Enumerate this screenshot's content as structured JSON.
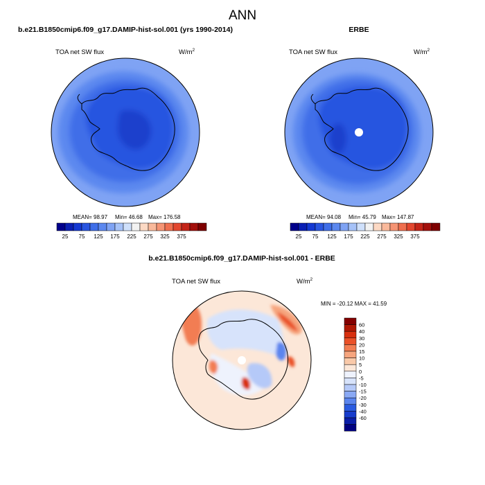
{
  "page": {
    "title": "ANN",
    "panel_a_title": "b.e21.B1850cmip6.f09_g17.DAMIP-hist-sol.001 (yrs 1990-2014)",
    "panel_b_title": "ERBE",
    "panel_c_title": "b.e21.B1850cmip6.f09_g17.DAMIP-hist-sol.001 - ERBE",
    "variable": "TOA net SW flux",
    "units_base": "W/m",
    "units_exp": "2"
  },
  "colors": {
    "abs_scale": [
      "#00008b",
      "#0a1fb4",
      "#1438d2",
      "#2854e0",
      "#3f6ee8",
      "#5c88ef",
      "#7fa3f4",
      "#a6c2f8",
      "#cfe0fb",
      "#f2f2f2",
      "#fcd9c4",
      "#f9b99b",
      "#f59474",
      "#ef6f4f",
      "#e3472f",
      "#c42418",
      "#a30f0b",
      "#7e0000"
    ],
    "diff_scale": [
      "#000080",
      "#0a1ea8",
      "#173ccc",
      "#2a5be0",
      "#5b85ee",
      "#8aa9f4",
      "#b5c9f8",
      "#d7e3fb",
      "#eef2fd",
      "#fce7d8",
      "#f9c9a9",
      "#f6a57e",
      "#f27d52",
      "#ea5128",
      "#d8300f",
      "#b01804",
      "#840000"
    ]
  },
  "chart_data": [
    {
      "type": "heatmap",
      "name": "model",
      "title": "b.e21.B1850cmip6.f09_g17.DAMIP-hist-sol.001 (yrs 1990-2014)",
      "variable": "TOA net SW flux",
      "units": "W/m2",
      "stats": {
        "mean": "MEAN=  98.97",
        "min": "Min=  46.68",
        "max": "Max=  176.58"
      },
      "colorbar_labels": [
        "25",
        "75",
        "125",
        "175",
        "225",
        "275",
        "325",
        "375"
      ]
    },
    {
      "type": "heatmap",
      "name": "obs",
      "title": "ERBE",
      "variable": "TOA net SW flux",
      "units": "W/m2",
      "stats": {
        "mean": "MEAN=  94.08",
        "min": "Min=  45.79",
        "max": "Max=  147.87"
      },
      "colorbar_labels": [
        "25",
        "75",
        "125",
        "175",
        "225",
        "275",
        "325",
        "375"
      ]
    },
    {
      "type": "heatmap",
      "name": "difference",
      "title": "b.e21.B1850cmip6.f09_g17.DAMIP-hist-sol.001 - ERBE",
      "variable": "TOA net SW flux",
      "units": "W/m2",
      "stats": {
        "minmax": "MIN = -20.12  MAX =  41.59"
      },
      "colorbar_labels": [
        "60",
        "40",
        "30",
        "20",
        "15",
        "10",
        "5",
        "0",
        "-5",
        "-10",
        "-15",
        "-20",
        "-30",
        "-40",
        "-60"
      ]
    }
  ]
}
